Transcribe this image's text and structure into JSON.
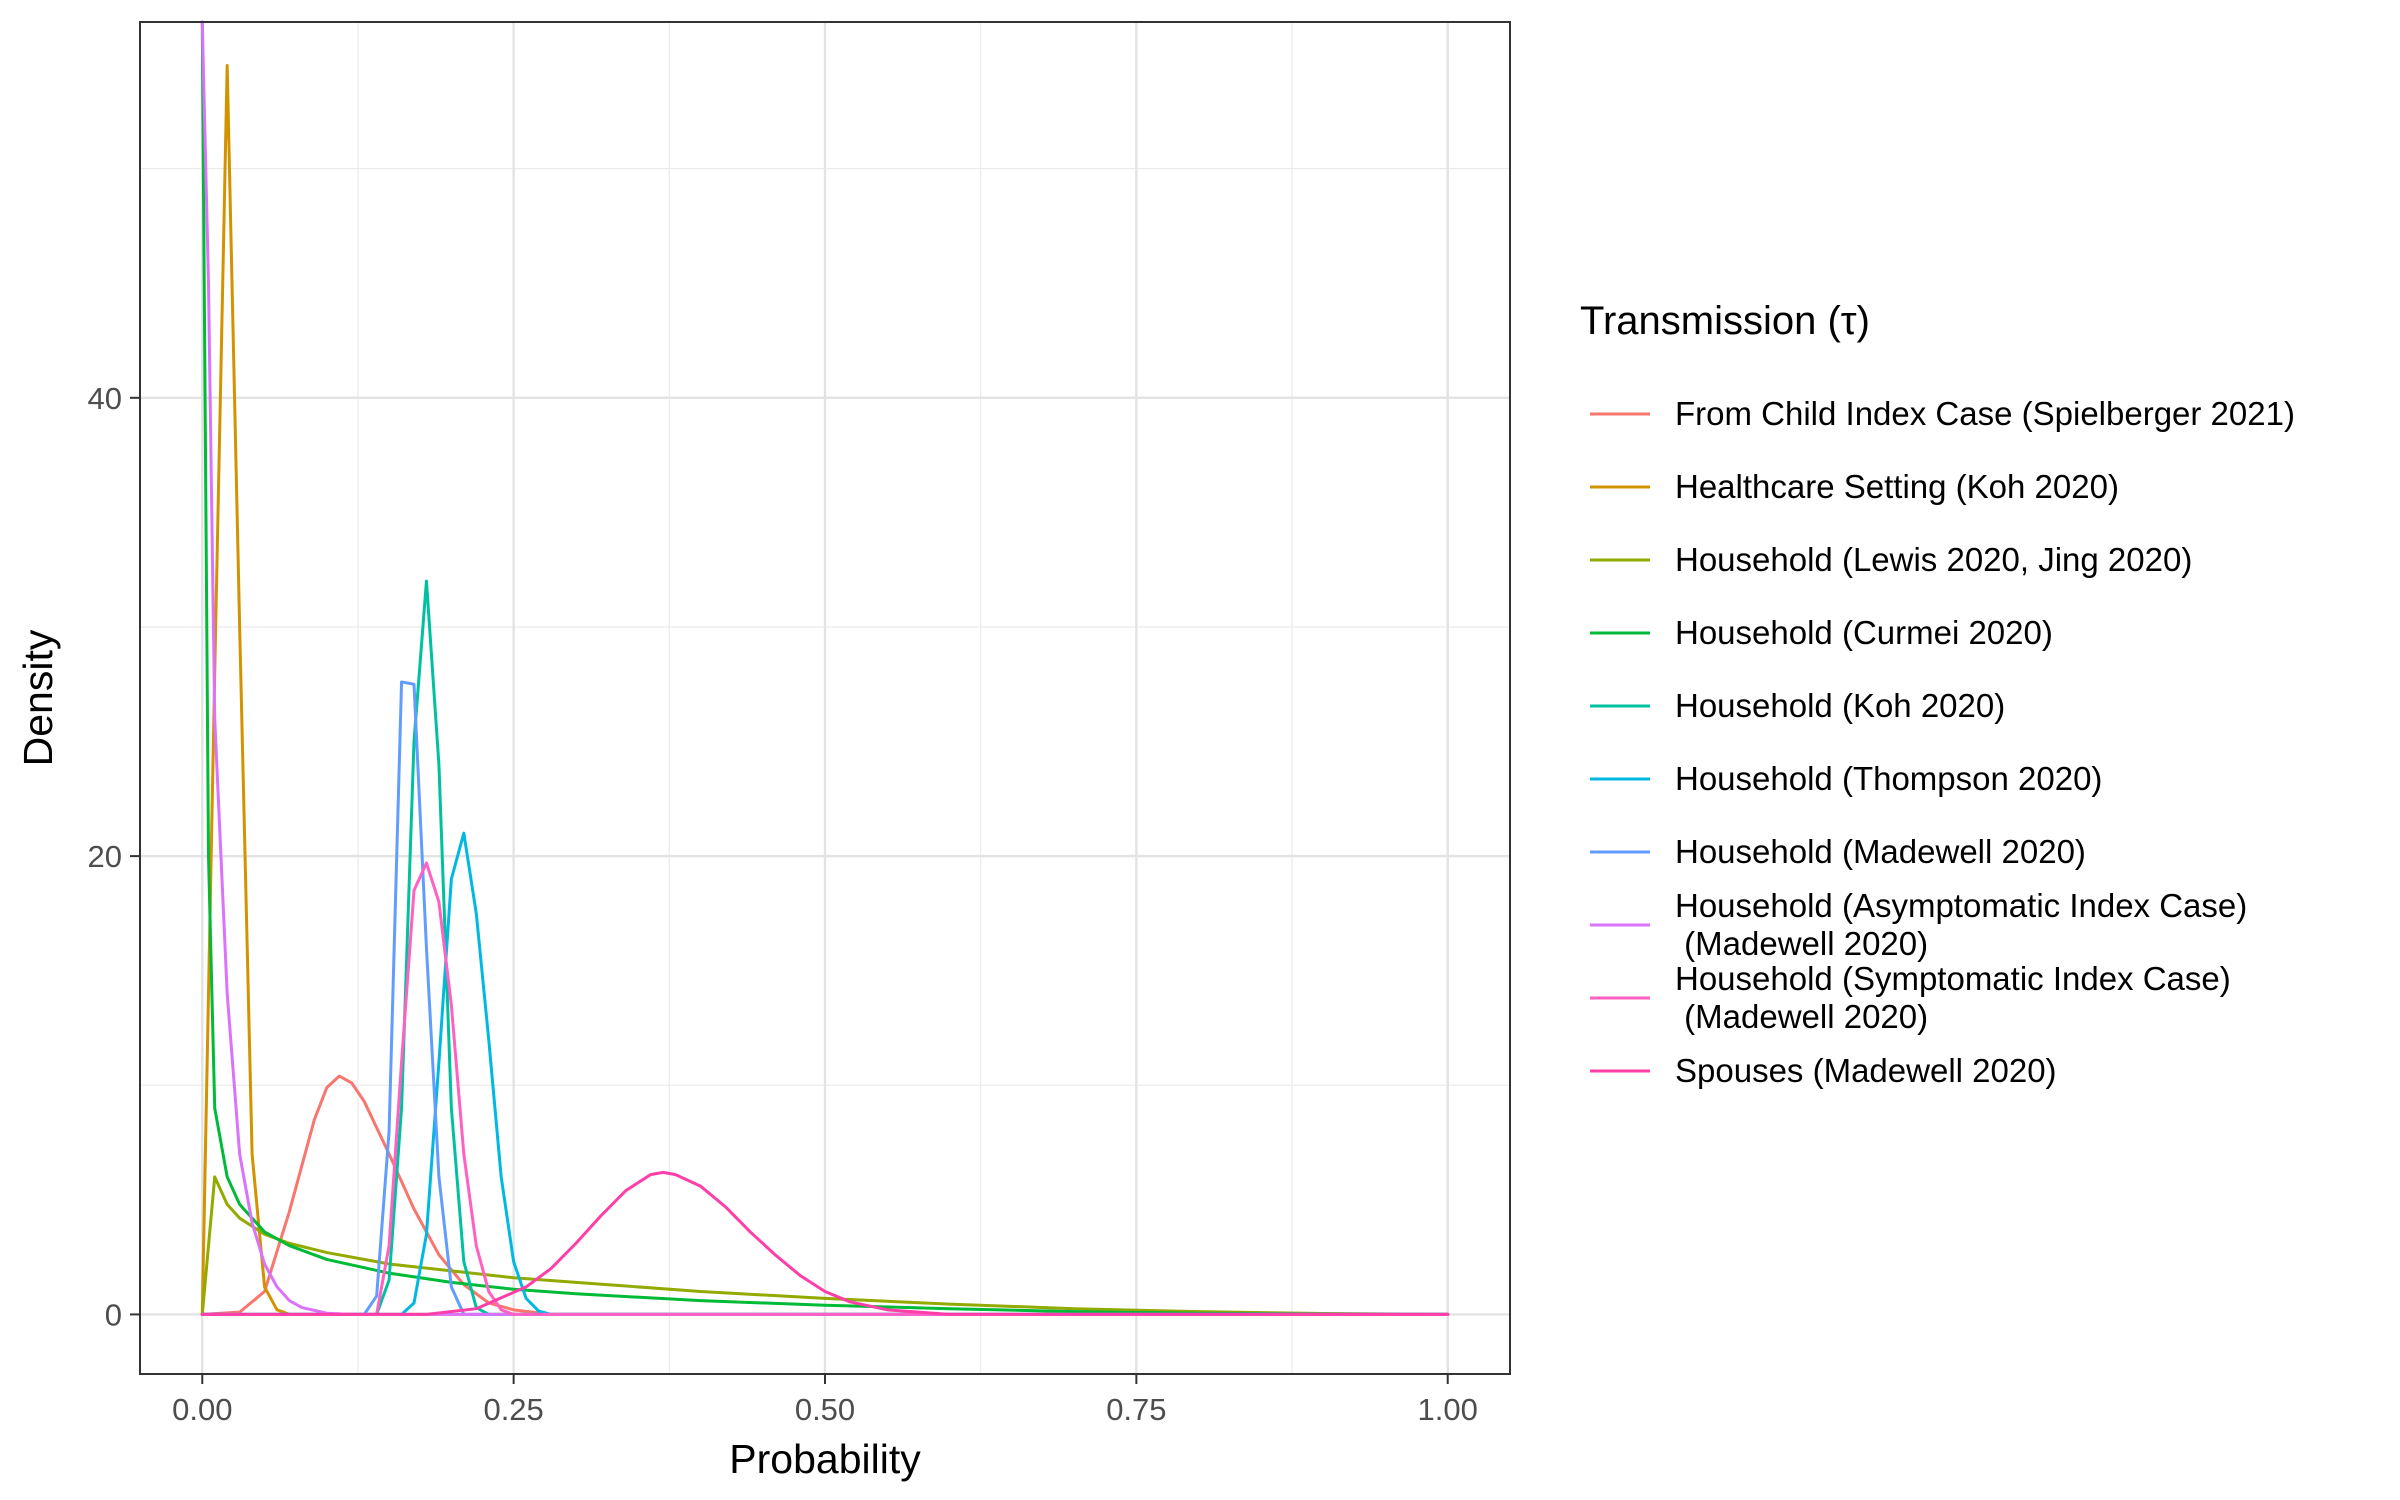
{
  "chart_data": {
    "type": "line",
    "xlabel": "Probability",
    "ylabel": "Density",
    "xlim": [
      -0.05,
      1.05
    ],
    "ylim": [
      -2.6,
      56.4
    ],
    "x_ticks": [
      0,
      0.25,
      0.5,
      0.75,
      1
    ],
    "x_tick_labels": [
      "0.00",
      "0.25",
      "0.50",
      "0.75",
      "1.00"
    ],
    "y_ticks": [
      0,
      20,
      40
    ],
    "y_tick_labels": [
      "0",
      "20",
      "40"
    ],
    "grid": true,
    "legend": {
      "title": "Transmission (τ)",
      "placement": "right"
    },
    "series": [
      {
        "name": "From Child Index Case (Spielberger 2021)",
        "color": "#F8766D",
        "x": [
          0,
          0.03,
          0.05,
          0.07,
          0.09,
          0.1,
          0.11,
          0.12,
          0.13,
          0.15,
          0.17,
          0.19,
          0.21,
          0.23,
          0.25,
          0.28,
          1
        ],
        "y": [
          0,
          0.1,
          1.0,
          4.5,
          8.5,
          9.9,
          10.4,
          10.1,
          9.3,
          7.0,
          4.6,
          2.6,
          1.3,
          0.5,
          0.2,
          0,
          0
        ]
      },
      {
        "name": "Healthcare Setting (Koh 2020)",
        "color": "#D39200",
        "x": [
          0,
          0.01,
          0.02,
          0.03,
          0.04,
          0.05,
          0.06,
          0.07,
          1
        ],
        "y": [
          0,
          28,
          54.5,
          30,
          7,
          1.2,
          0.2,
          0,
          0
        ]
      },
      {
        "name": "Household (Lewis 2020, Jing 2020)",
        "color": "#93AA00",
        "x": [
          0,
          0.01,
          0.02,
          0.03,
          0.05,
          0.07,
          0.1,
          0.15,
          0.2,
          0.25,
          0.3,
          0.4,
          0.5,
          0.6,
          0.7,
          0.8,
          0.9,
          1
        ],
        "y": [
          0,
          6.0,
          4.8,
          4.2,
          3.5,
          3.1,
          2.7,
          2.2,
          1.9,
          1.6,
          1.4,
          1.0,
          0.7,
          0.45,
          0.25,
          0.12,
          0.04,
          0
        ]
      },
      {
        "name": "Household (Curmei 2020)",
        "color": "#00BA38",
        "x": [
          0,
          0.005,
          0.01,
          0.02,
          0.03,
          0.05,
          0.07,
          0.1,
          0.15,
          0.2,
          0.25,
          0.3,
          0.4,
          0.5,
          0.6,
          0.7,
          0.8,
          1
        ],
        "y": [
          56.4,
          20,
          9.0,
          6.0,
          4.8,
          3.6,
          3.0,
          2.4,
          1.8,
          1.4,
          1.1,
          0.9,
          0.6,
          0.4,
          0.25,
          0.12,
          0.05,
          0
        ]
      },
      {
        "name": "Household (Koh 2020)",
        "color": "#00C19F",
        "x": [
          0,
          0.14,
          0.15,
          0.16,
          0.17,
          0.18,
          0.19,
          0.2,
          0.21,
          0.22,
          0.23,
          1
        ],
        "y": [
          0,
          0,
          1.5,
          9,
          25,
          32,
          24,
          9,
          2.3,
          0.3,
          0,
          0
        ]
      },
      {
        "name": "Household (Thompson 2020)",
        "color": "#00B9E3",
        "x": [
          0,
          0.16,
          0.17,
          0.18,
          0.19,
          0.2,
          0.21,
          0.22,
          0.23,
          0.24,
          0.25,
          0.26,
          0.27,
          0.28,
          1
        ],
        "y": [
          0,
          0,
          0.5,
          3.5,
          11,
          19,
          21,
          17.5,
          12,
          6,
          2.3,
          0.7,
          0.15,
          0,
          0
        ]
      },
      {
        "name": "Household (Madewell 2020)",
        "color": "#619CFF",
        "x": [
          0,
          0.13,
          0.14,
          0.15,
          0.16,
          0.17,
          0.18,
          0.19,
          0.2,
          0.21,
          1
        ],
        "y": [
          0,
          0,
          0.8,
          8,
          27.6,
          27.5,
          16,
          6,
          1.2,
          0,
          0
        ]
      },
      {
        "name": "Household (Asymptomatic Index Case)\n (Madewell 2020)",
        "color": "#DB72FB",
        "x": [
          0,
          0.005,
          0.01,
          0.02,
          0.03,
          0.04,
          0.05,
          0.06,
          0.07,
          0.08,
          0.1,
          0.12,
          1
        ],
        "y": [
          56.4,
          45,
          26,
          14,
          7,
          4,
          2.2,
          1.2,
          0.6,
          0.3,
          0.05,
          0,
          0
        ]
      },
      {
        "name": "Household (Symptomatic Index Case)\n (Madewell 2020)",
        "color": "#FF61C3",
        "x": [
          0,
          0.14,
          0.15,
          0.16,
          0.17,
          0.18,
          0.19,
          0.2,
          0.21,
          0.22,
          0.23,
          0.24,
          0.25,
          1
        ],
        "y": [
          0,
          0,
          3,
          11,
          18.5,
          19.7,
          18,
          13.5,
          7,
          3,
          1,
          0.2,
          0,
          0
        ]
      },
      {
        "name": "Spouses (Madewell 2020)",
        "color": "#FF3FA8",
        "x": [
          0,
          0.18,
          0.22,
          0.26,
          0.28,
          0.3,
          0.32,
          0.34,
          0.36,
          0.37,
          0.38,
          0.4,
          0.42,
          0.44,
          0.46,
          0.48,
          0.5,
          0.52,
          0.55,
          0.6,
          1
        ],
        "y": [
          0,
          0,
          0.25,
          1.2,
          2.0,
          3.1,
          4.3,
          5.4,
          6.1,
          6.2,
          6.1,
          5.6,
          4.7,
          3.6,
          2.6,
          1.7,
          1.0,
          0.55,
          0.2,
          0,
          0
        ]
      }
    ]
  }
}
